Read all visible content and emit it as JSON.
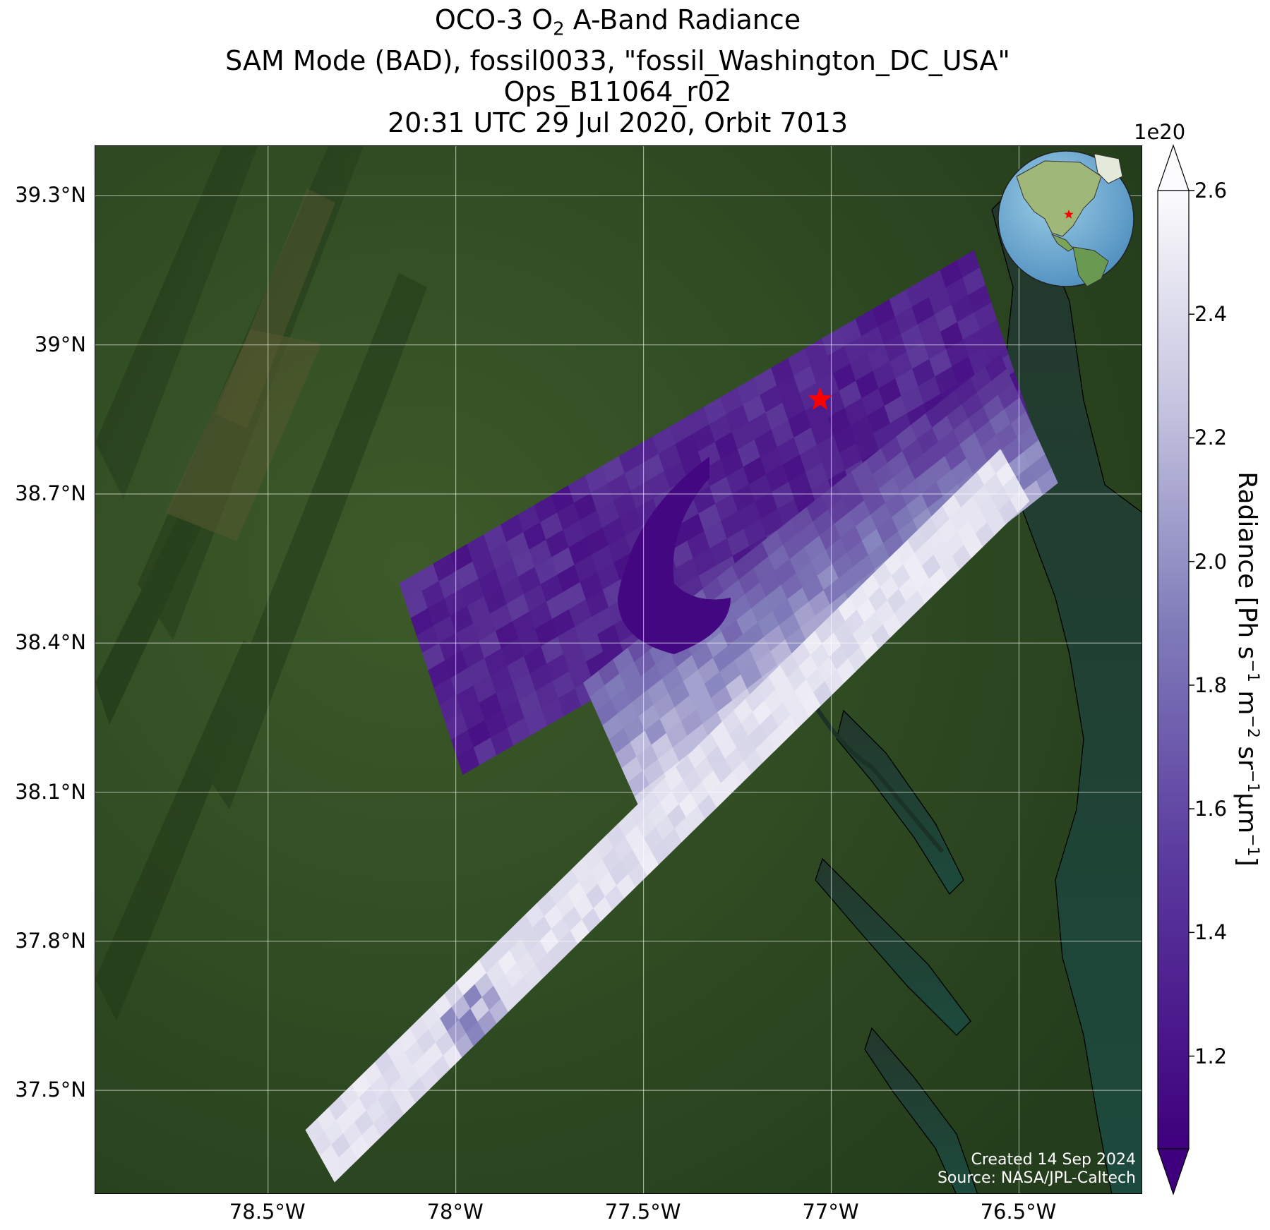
{
  "title": {
    "line1_prefix": "OCO-3 O",
    "line1_sub": "2",
    "line1_suffix": " A-Band Radiance",
    "line2": "SAM Mode (BAD), fossil0033, \"fossil_Washington_DC_USA\"",
    "line3": "Ops_B11064_r02",
    "line4": "20:31 UTC 29 Jul 2020, Orbit 7013"
  },
  "axes": {
    "y_ticks": [
      "39.3°N",
      "39°N",
      "38.7°N",
      "38.4°N",
      "38.1°N",
      "37.8°N",
      "37.5°N"
    ],
    "y_values": [
      39.3,
      39.0,
      38.7,
      38.4,
      38.1,
      37.8,
      37.5
    ],
    "x_ticks": [
      "78.5°W",
      "78°W",
      "77.5°W",
      "77°W",
      "76.5°W"
    ],
    "x_values": [
      -78.5,
      -78.0,
      -77.5,
      -77.0,
      -76.5
    ],
    "lon_range": [
      -78.96,
      -76.17
    ],
    "lat_range": [
      37.29,
      39.4
    ]
  },
  "colorbar": {
    "exponent": "1e20",
    "label_prefix": "Radiance [Ph s",
    "label_sup1": "−1",
    "label_m": " m",
    "label_sup2": "−2",
    "label_sr": " sr",
    "label_sup3": "−1",
    "label_um": "μm",
    "label_sup4": "−1",
    "label_suffix": "]",
    "ticks": [
      "1.2",
      "1.4",
      "1.6",
      "1.8",
      "2.0",
      "2.2",
      "2.4",
      "2.6"
    ],
    "tick_values": [
      1.2,
      1.4,
      1.6,
      1.8,
      2.0,
      2.2,
      2.4,
      2.6
    ],
    "range": [
      1.05,
      2.6
    ],
    "colormap": "Purples_r",
    "color_low": "#3f007d",
    "color_mid": "#807dba",
    "color_high": "#fcfbfd"
  },
  "target": {
    "lat": 38.89,
    "lon": -77.03,
    "marker": "star",
    "color": "#ff0000"
  },
  "credits": {
    "created": "Created 14 Sep 2024",
    "source": "Source: NASA/JPL-Caltech"
  },
  "colors": {
    "land": "#2f4a22",
    "water": "#1f3a2e",
    "gridline": "#ffffff"
  },
  "inset_globe": {
    "marker": "star",
    "marker_color": "#ff0000"
  }
}
